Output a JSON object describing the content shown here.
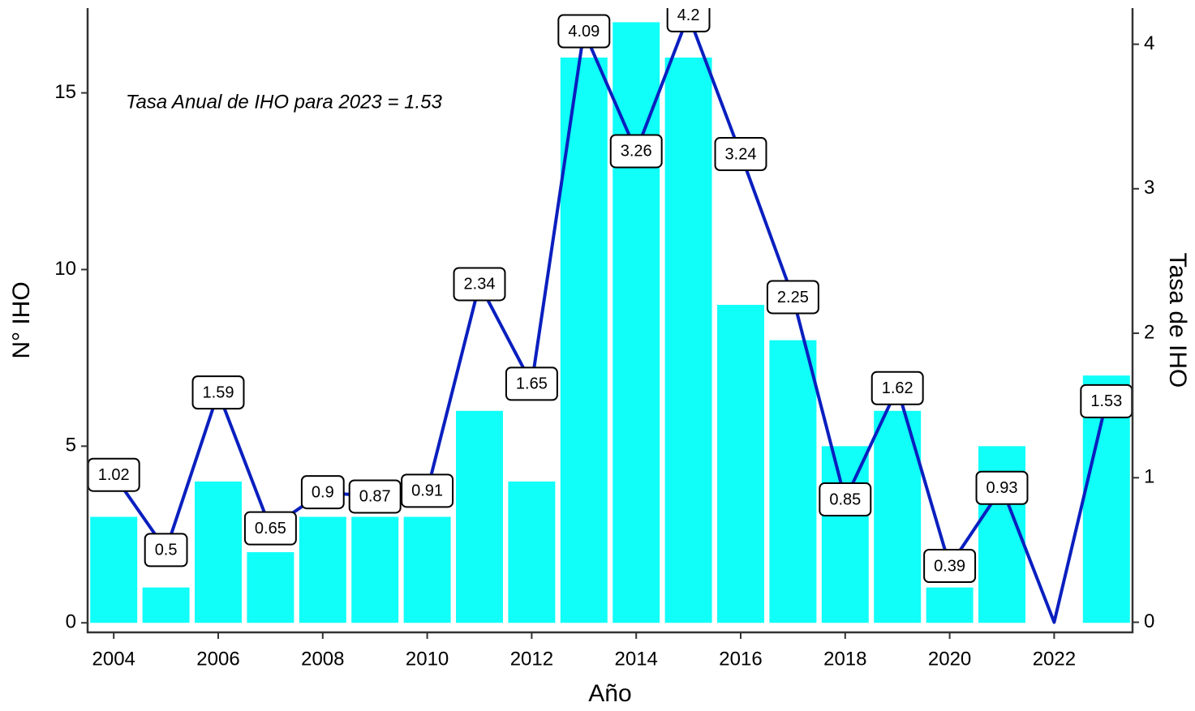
{
  "chart_data": {
    "type": "bar",
    "annotation": "Tasa Anual de IHO para 2023 = 1.53",
    "xlabel": "Año",
    "ylabel": "N° IHO",
    "y2label": "Tasa de IHO",
    "x": [
      2004,
      2005,
      2006,
      2007,
      2008,
      2009,
      2010,
      2011,
      2012,
      2013,
      2014,
      2015,
      2016,
      2017,
      2018,
      2019,
      2020,
      2021,
      2022,
      2023
    ],
    "series": [
      {
        "type": "bar",
        "color": "#10fff8",
        "values": [
          3,
          1,
          4,
          2,
          3,
          3,
          3,
          6,
          4,
          16,
          17,
          16,
          9,
          8,
          5,
          6,
          1,
          5,
          0,
          7
        ]
      },
      {
        "type": "line",
        "axis": "y2",
        "color": "#0a1fbf",
        "values": [
          1.02,
          0.5,
          1.59,
          0.65,
          0.9,
          0.87,
          0.91,
          2.34,
          1.65,
          4.09,
          3.26,
          4.2,
          3.24,
          2.25,
          0.85,
          1.62,
          0.39,
          0.93,
          0,
          1.53
        ],
        "value_labels": [
          "1.02",
          "0.5",
          "1.59",
          "0.65",
          "0.9",
          "0.87",
          "0.91",
          "2.34",
          "1.65",
          "4.09",
          "3.26",
          "4.2",
          "3.24",
          "2.25",
          "0.85",
          "1.62",
          "0.39",
          "0.93",
          null,
          "1.53"
        ]
      }
    ],
    "xlim": [
      2003.5,
      2023.5
    ],
    "xticks": [
      2004,
      2006,
      2008,
      2010,
      2012,
      2014,
      2016,
      2018,
      2020,
      2022
    ],
    "ylim": [
      -0.27,
      17.4
    ],
    "yticks": [
      0,
      5,
      10,
      15
    ],
    "y2lim": [
      -0.07,
      4.25
    ],
    "y2ticks": [
      0,
      1,
      2,
      3,
      4
    ]
  }
}
